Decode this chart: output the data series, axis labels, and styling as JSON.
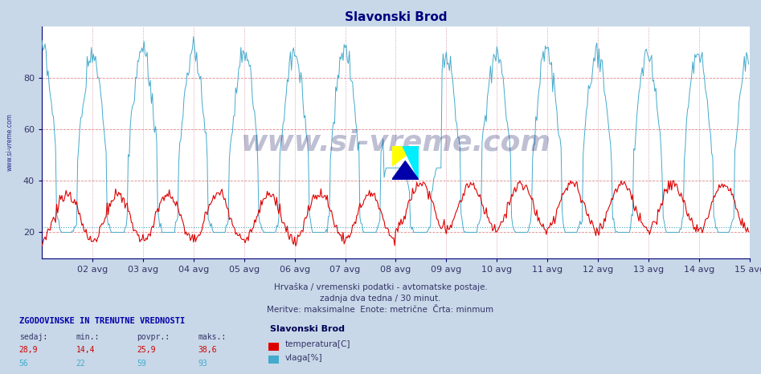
{
  "title": "Slavonski Brod",
  "title_color": "#000080",
  "bg_color": "#c8d8e8",
  "plot_bg_color": "#ffffff",
  "xlabel_dates": [
    "02 avg",
    "03 avg",
    "04 avg",
    "05 avg",
    "06 avg",
    "07 avg",
    "08 avg",
    "09 avg",
    "10 avg",
    "11 avg",
    "12 avg",
    "13 avg",
    "14 avg",
    "15 avg"
  ],
  "ylabel_ticks": [
    20,
    40,
    60,
    80
  ],
  "ylim": [
    10,
    100
  ],
  "xlim": [
    0,
    671
  ],
  "temp_color": "#dd0000",
  "hum_color": "#44aacc",
  "hum_min_line_color": "#44aacc",
  "hum_min_value": 22,
  "vgrid_color": "#cc99aa",
  "hgrid_color": "#dd9999",
  "watermark_text": "www.si-vreme.com",
  "footer_line1": "Hrvaška / vremenski podatki - avtomatske postaje.",
  "footer_line2": "zadnja dva tedna / 30 minut.",
  "footer_line3": "Meritve: maksimalne  Enote: metrične  Črta: minmum",
  "stats_header": "ZGODOVINSKE IN TRENUTNE VREDNOSTI",
  "stats_cols": [
    "sedaj:",
    "min.:",
    "povpr.:",
    "maks.:"
  ],
  "stats_temp": [
    "28,9",
    "14,4",
    "25,9",
    "38,6"
  ],
  "stats_hum": [
    "56",
    "22",
    "59",
    "93"
  ],
  "legend_station": "Slavonski Brod",
  "legend_temp_label": "temperatura[C]",
  "legend_hum_label": "vlaga[%]",
  "n_points": 672,
  "days": 14
}
